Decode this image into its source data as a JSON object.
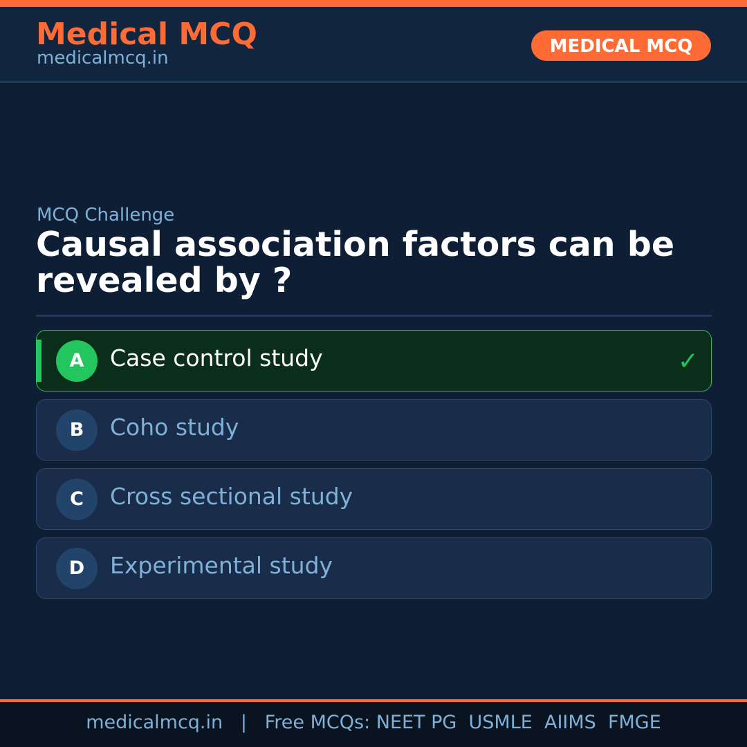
{
  "header": {
    "brand": "Medical MCQ",
    "site": "medicalmcq.in",
    "badge": "MEDICAL MCQ"
  },
  "colors": {
    "accent": "#ff6b35",
    "correct": "#22c55e",
    "background": "#0e1f35"
  },
  "question": {
    "kicker": "MCQ Challenge",
    "text": "Causal association factors can be revealed by ?"
  },
  "options": [
    {
      "letter": "A",
      "text": "Case control study",
      "correct": true
    },
    {
      "letter": "B",
      "text": "Coho study",
      "correct": false
    },
    {
      "letter": "C",
      "text": "Cross sectional study",
      "correct": false
    },
    {
      "letter": "D",
      "text": "Experimental study",
      "correct": false
    }
  ],
  "check_icon": "✓",
  "footer": {
    "text": "medicalmcq.in   |   Free MCQs: NEET PG  USMLE  AIIMS  FMGE"
  }
}
